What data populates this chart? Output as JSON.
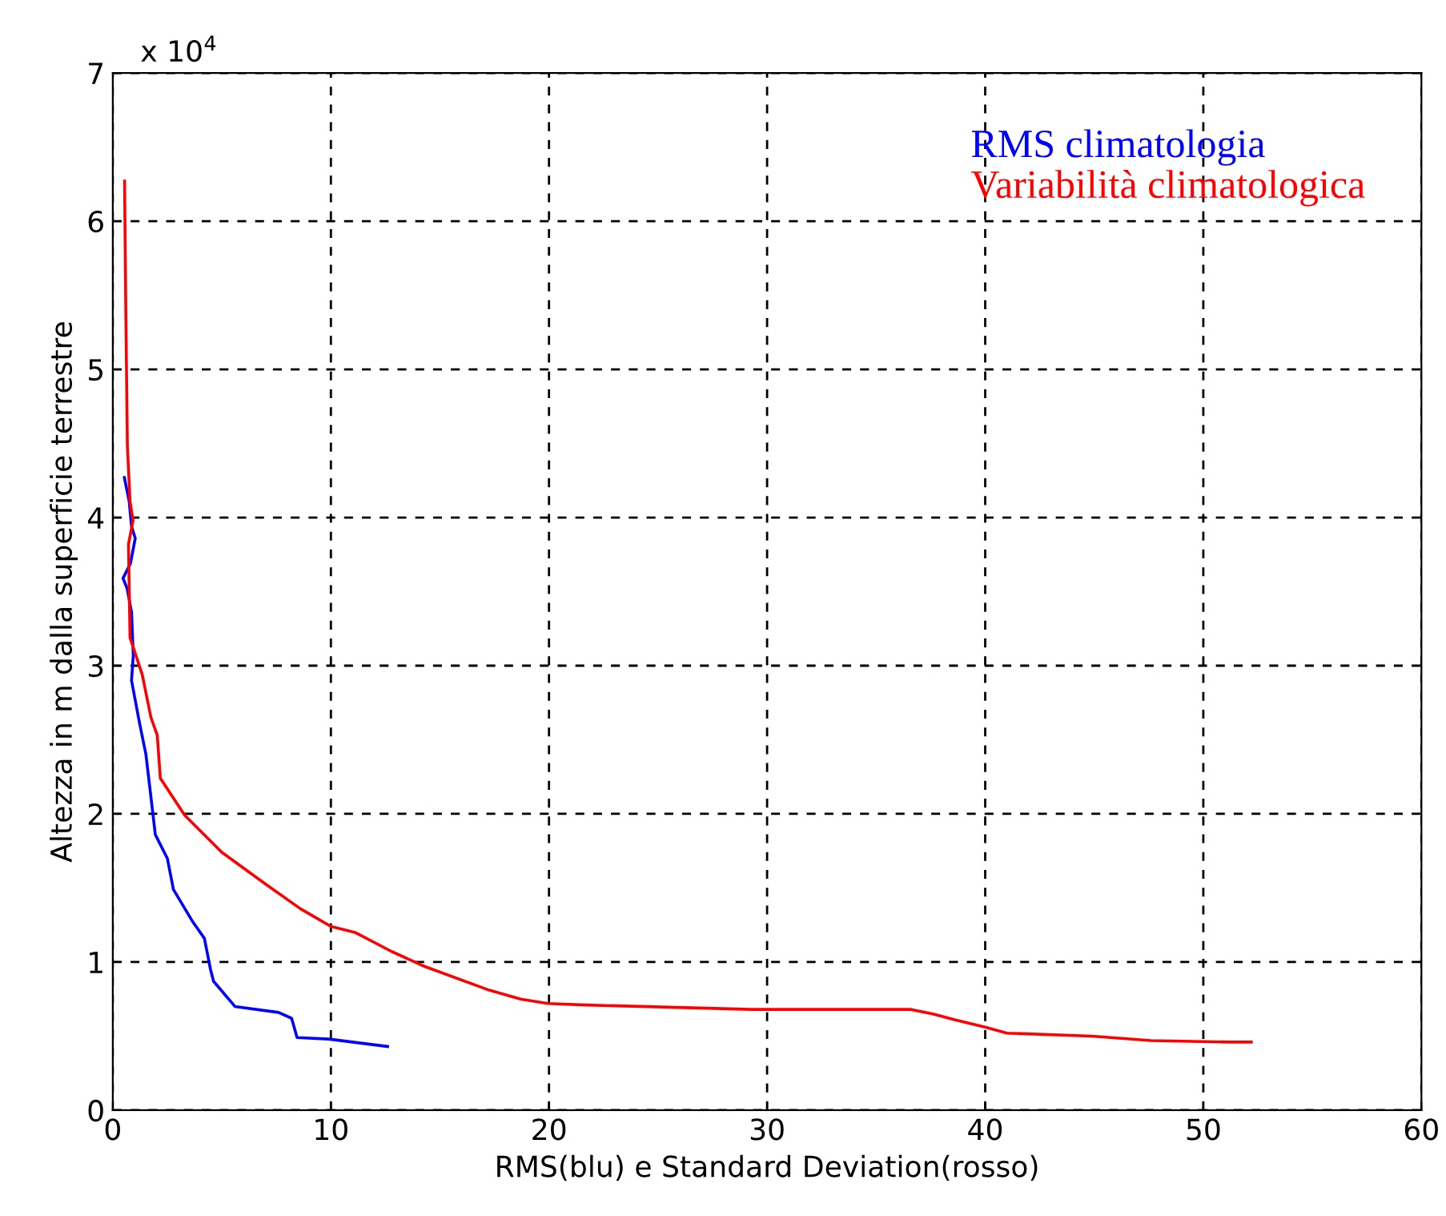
{
  "chart_data": {
    "type": "line",
    "xlabel": "RMS(blu) e Standard Deviation(rosso)",
    "ylabel": "Altezza in m dalla superficie terrestre",
    "annotations": [
      "x 10$^{4}$"
    ],
    "xlim": [
      0,
      60
    ],
    "xticks": [
      0,
      10,
      20,
      30,
      40,
      50,
      60
    ],
    "ylim": [
      0,
      7
    ],
    "yticks": [
      0,
      1,
      2,
      3,
      4,
      5,
      6,
      7
    ],
    "grid": true,
    "legend": "top right",
    "line_style": "solid",
    "series": [
      {
        "name": "RMS climatologia",
        "color": "#0000ff",
        "x": [
          0.53,
          0.75,
          0.86,
          1.03,
          0.81,
          0.47,
          0.66,
          0.86,
          0.94,
          0.86,
          1.23,
          1.52,
          1.72,
          1.95,
          2.5,
          2.78,
          3.63,
          4.2,
          4.48,
          4.62,
          5.6,
          7.6,
          8.2,
          8.45,
          9.9,
          12.6
        ],
        "values": [
          4.27,
          4.11,
          3.94,
          3.86,
          3.69,
          3.59,
          3.52,
          3.36,
          3.07,
          2.9,
          2.61,
          2.4,
          2.15,
          1.86,
          1.7,
          1.49,
          1.28,
          1.16,
          0.95,
          0.87,
          0.7,
          0.66,
          0.62,
          0.49,
          0.48,
          0.43
        ]
      },
      {
        "name": "Variabilità climatologica",
        "color": "#ff0000",
        "x": [
          0.54,
          0.6,
          0.67,
          0.79,
          0.93,
          0.72,
          0.79,
          1.35,
          1.75,
          2.04,
          2.18,
          3.3,
          5.0,
          6.97,
          8.6,
          10.0,
          11.1,
          12.8,
          14.3,
          17.26,
          18.7,
          19.95,
          21.7,
          29.3,
          34.4,
          36.6,
          37.6,
          38.6,
          40.0,
          41.0,
          44.9,
          47.6,
          51.1,
          52.2
        ],
        "values": [
          6.27,
          5.36,
          4.48,
          4.11,
          3.98,
          3.82,
          3.19,
          2.94,
          2.65,
          2.53,
          2.24,
          1.99,
          1.74,
          1.53,
          1.36,
          1.24,
          1.2,
          1.07,
          0.97,
          0.81,
          0.75,
          0.72,
          0.71,
          0.68,
          0.68,
          0.68,
          0.65,
          0.61,
          0.56,
          0.52,
          0.5,
          0.47,
          0.46,
          0.46
        ]
      }
    ]
  }
}
